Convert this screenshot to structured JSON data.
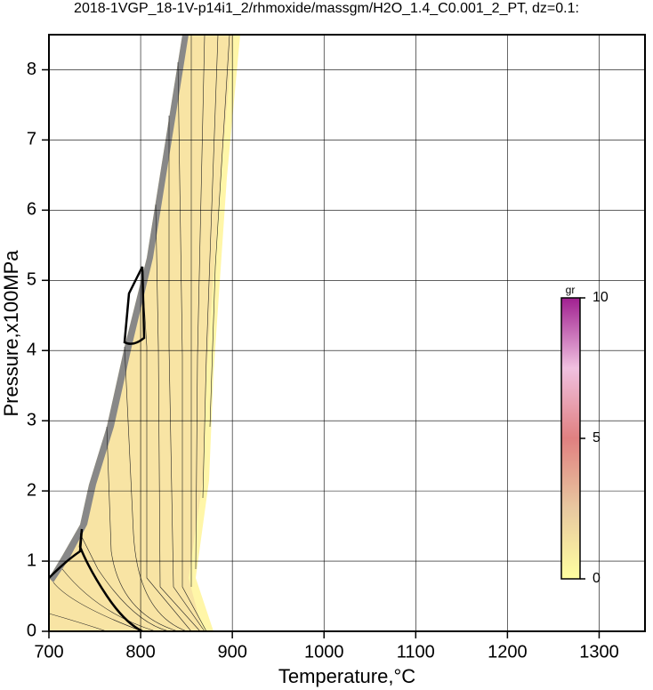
{
  "chart_data": {
    "type": "contour",
    "title": "2018-1VGP_18-1V-p14i1_2/rhmoxide/massgm/H2O_1.4_C0.001_2_PT, dz=0.1:",
    "x_label": "Temperature,°C",
    "y_label": "Pressure,x100MPa",
    "xlim": [
      700,
      1350
    ],
    "ylim": [
      0,
      8.5
    ],
    "xticks": [
      700,
      800,
      900,
      1000,
      1100,
      1200,
      1300
    ],
    "yticks": [
      0,
      1,
      2,
      3,
      4,
      5,
      6,
      7,
      8
    ],
    "grid": true,
    "colorbar": {
      "label": "gr",
      "clim": [
        0,
        10
      ],
      "ticks": [
        0,
        5,
        10
      ],
      "colors": [
        "#ffffa0",
        "#e8c8a0",
        "#e08080",
        "#f0c0e0",
        "#a02090"
      ]
    }
  }
}
